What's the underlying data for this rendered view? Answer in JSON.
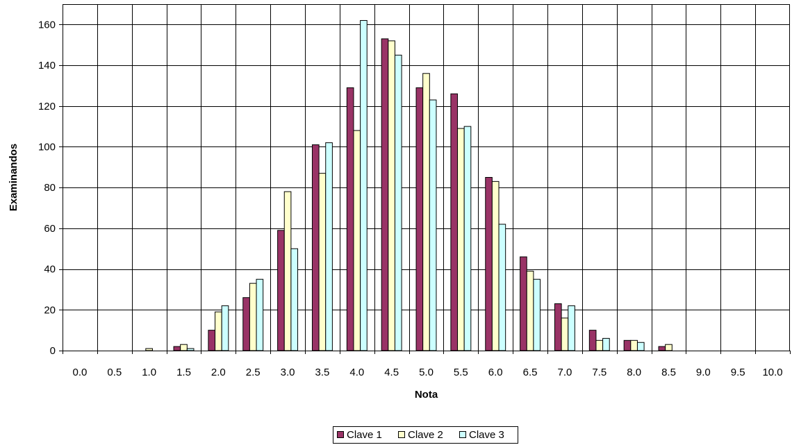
{
  "chart_data": {
    "type": "bar",
    "title": "",
    "xlabel": "Nota",
    "ylabel": "Examinandos",
    "ylim": [
      0,
      170
    ],
    "yticks": [
      0,
      20,
      40,
      60,
      80,
      100,
      120,
      140,
      160
    ],
    "grid": true,
    "legend_position": "bottom",
    "categories": [
      "0.0",
      "0.5",
      "1.0",
      "1.5",
      "2.0",
      "2.5",
      "3.0",
      "3.5",
      "4.0",
      "4.5",
      "5.0",
      "5.5",
      "6.0",
      "6.5",
      "7.0",
      "7.5",
      "8.0",
      "8.5",
      "9.0",
      "9.5",
      "10.0"
    ],
    "series": [
      {
        "name": "Clave 1",
        "color": "#993366",
        "values": [
          0,
          0,
          0,
          2,
          10,
          26,
          59,
          101,
          129,
          153,
          129,
          126,
          85,
          46,
          23,
          10,
          5,
          2,
          0,
          0,
          0
        ]
      },
      {
        "name": "Clave 2",
        "color": "#FFFFCC",
        "values": [
          0,
          0,
          1,
          3,
          19,
          33,
          78,
          87,
          108,
          152,
          136,
          109,
          83,
          39,
          16,
          5,
          5,
          3,
          0,
          0,
          0
        ]
      },
      {
        "name": "Clave 3",
        "color": "#CCFFFF",
        "values": [
          0,
          0,
          0,
          1,
          22,
          35,
          50,
          102,
          162,
          145,
          123,
          110,
          62,
          35,
          22,
          6,
          4,
          0,
          0,
          0,
          0
        ]
      }
    ]
  }
}
